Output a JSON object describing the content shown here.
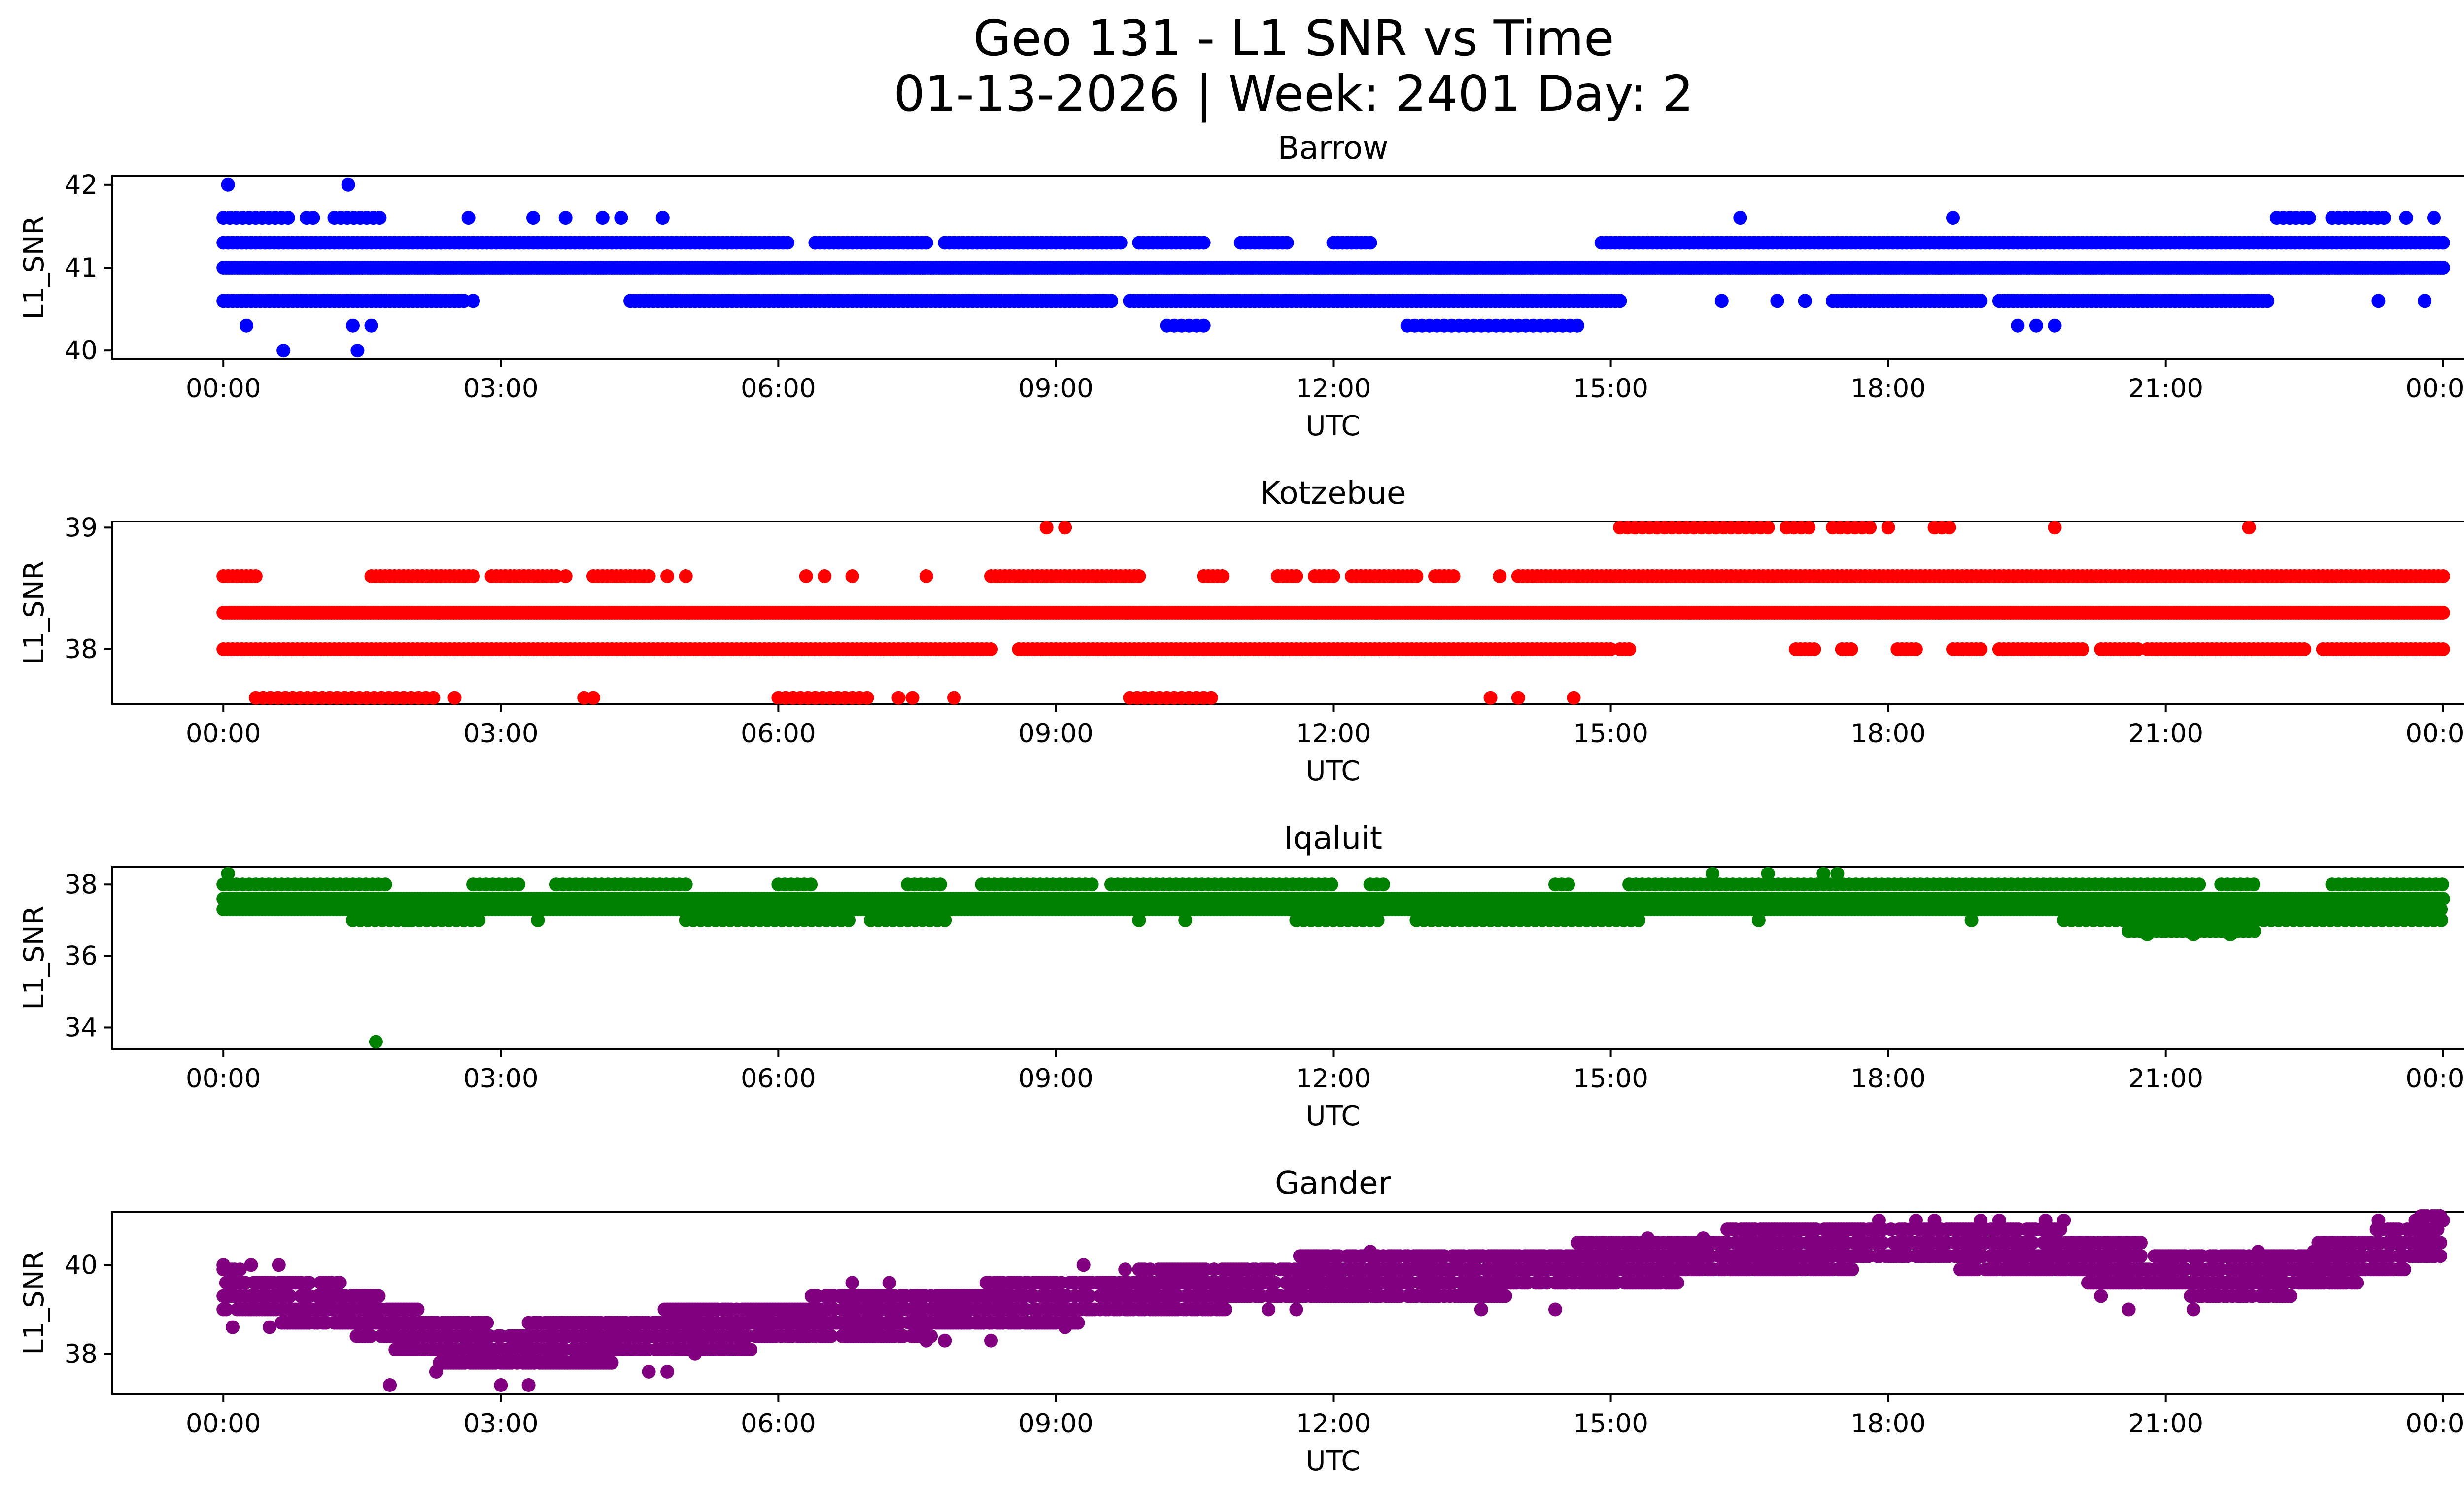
{
  "chart_data": {
    "type": "scatter",
    "title_line1": "Geo 131 - L1 SNR vs Time",
    "title_line2": "01-13-2026 | Week: 2401 Day: 2",
    "xlabel": "UTC",
    "ylabel": "L1_SNR",
    "x_unit": "hours UTC",
    "xlim": [
      -1.2,
      25.2
    ],
    "xticks": [
      0,
      3,
      6,
      9,
      12,
      15,
      18,
      21,
      24
    ],
    "xtick_labels": [
      "00:00",
      "03:00",
      "06:00",
      "09:00",
      "12:00",
      "15:00",
      "18:00",
      "21:00",
      "00:00"
    ],
    "panels": [
      {
        "title": "Barrow",
        "color": "#0000ff",
        "ylim": [
          39.9,
          42.1
        ],
        "yticks": [
          40,
          41,
          42
        ],
        "ytick_labels": [
          "40",
          "41",
          "42"
        ],
        "bands": [
          {
            "y": 41.0,
            "segments": [
              [
                0,
                24
              ]
            ],
            "step": 0.03
          },
          {
            "y": 41.3,
            "segments": [
              [
                0,
                6.1
              ],
              [
                6.4,
                7.6
              ],
              [
                7.8,
                9.7
              ],
              [
                9.9,
                10.6
              ],
              [
                11.0,
                11.5
              ],
              [
                12.0,
                12.4
              ],
              [
                14.9,
                24
              ]
            ],
            "step": 0.05
          },
          {
            "y": 40.6,
            "segments": [
              [
                0,
                2.6
              ],
              [
                4.4,
                9.6
              ],
              [
                9.8,
                15.1
              ],
              [
                17.4,
                19.0
              ],
              [
                19.2,
                22.1
              ]
            ],
            "step": 0.05
          },
          {
            "y": 41.6,
            "segments": [
              [
                0,
                0.7
              ],
              [
                0.9,
                1.0
              ],
              [
                1.2,
                1.7
              ],
              [
                22.2,
                22.6
              ],
              [
                22.8,
                23.4
              ]
            ],
            "step": 0.07
          },
          {
            "y": 40.3,
            "segments": [
              [
                10.2,
                10.6
              ],
              [
                12.8,
                14.7
              ]
            ],
            "step": 0.08
          }
        ],
        "points": [
          {
            "x": 0.05,
            "y": 42.0
          },
          {
            "x": 1.35,
            "y": 42.0
          },
          {
            "x": 0.25,
            "y": 40.3
          },
          {
            "x": 1.4,
            "y": 40.3
          },
          {
            "x": 1.6,
            "y": 40.3
          },
          {
            "x": 0.65,
            "y": 40.0
          },
          {
            "x": 1.45,
            "y": 40.0
          },
          {
            "x": 2.65,
            "y": 41.6
          },
          {
            "x": 3.35,
            "y": 41.6
          },
          {
            "x": 3.7,
            "y": 41.6
          },
          {
            "x": 4.1,
            "y": 41.6
          },
          {
            "x": 4.3,
            "y": 41.6
          },
          {
            "x": 4.75,
            "y": 41.6
          },
          {
            "x": 16.4,
            "y": 41.6
          },
          {
            "x": 18.7,
            "y": 41.6
          },
          {
            "x": 23.6,
            "y": 41.6
          },
          {
            "x": 23.9,
            "y": 41.6
          },
          {
            "x": 2.7,
            "y": 40.6
          },
          {
            "x": 16.2,
            "y": 40.6
          },
          {
            "x": 16.8,
            "y": 40.6
          },
          {
            "x": 17.1,
            "y": 40.6
          },
          {
            "x": 23.3,
            "y": 40.6
          },
          {
            "x": 23.8,
            "y": 40.6
          },
          {
            "x": 19.4,
            "y": 40.3
          },
          {
            "x": 19.6,
            "y": 40.3
          },
          {
            "x": 19.8,
            "y": 40.3
          }
        ]
      },
      {
        "title": "Kotzebue",
        "color": "#ff0000",
        "ylim": [
          37.55,
          39.05
        ],
        "yticks": [
          38,
          39
        ],
        "ytick_labels": [
          "38",
          "39"
        ],
        "bands": [
          {
            "y": 38.3,
            "segments": [
              [
                0,
                24
              ]
            ],
            "step": 0.03
          },
          {
            "y": 38.0,
            "segments": [
              [
                0,
                8.3
              ],
              [
                8.6,
                15.0
              ],
              [
                15.1,
                15.2
              ],
              [
                17.0,
                17.2
              ],
              [
                17.5,
                17.6
              ],
              [
                18.1,
                18.3
              ],
              [
                18.7,
                19.0
              ],
              [
                19.2,
                20.1
              ],
              [
                20.3,
                20.7
              ],
              [
                20.8,
                22.5
              ],
              [
                22.7,
                24
              ]
            ],
            "step": 0.05
          },
          {
            "y": 38.6,
            "segments": [
              [
                0,
                0.35
              ],
              [
                1.6,
                2.7
              ],
              [
                2.9,
                3.6
              ],
              [
                4.0,
                4.6
              ],
              [
                8.3,
                9.9
              ],
              [
                10.6,
                10.8
              ],
              [
                11.4,
                11.6
              ],
              [
                11.8,
                12.0
              ],
              [
                12.2,
                12.9
              ],
              [
                13.1,
                13.3
              ],
              [
                14.0,
                24
              ]
            ],
            "step": 0.05
          },
          {
            "y": 37.6,
            "segments": [
              [
                0.35,
                2.3
              ],
              [
                6.0,
                7.0
              ],
              [
                9.8,
                10.7
              ]
            ],
            "step": 0.08
          },
          {
            "y": 39.0,
            "segments": [
              [
                15.1,
                16.7
              ],
              [
                16.9,
                17.2
              ],
              [
                17.4,
                17.8
              ],
              [
                18.5,
                18.7
              ]
            ],
            "step": 0.08
          }
        ],
        "points": [
          {
            "x": 2.5,
            "y": 37.6
          },
          {
            "x": 3.9,
            "y": 37.6
          },
          {
            "x": 4.0,
            "y": 37.6
          },
          {
            "x": 7.3,
            "y": 37.6
          },
          {
            "x": 7.45,
            "y": 37.6
          },
          {
            "x": 7.9,
            "y": 37.6
          },
          {
            "x": 13.7,
            "y": 37.6
          },
          {
            "x": 14.0,
            "y": 37.6
          },
          {
            "x": 14.6,
            "y": 37.6
          },
          {
            "x": 8.9,
            "y": 39.0
          },
          {
            "x": 9.1,
            "y": 39.0
          },
          {
            "x": 19.8,
            "y": 39.0
          },
          {
            "x": 21.9,
            "y": 39.0
          },
          {
            "x": 18.0,
            "y": 39.0
          },
          {
            "x": 3.7,
            "y": 38.6
          },
          {
            "x": 4.8,
            "y": 38.6
          },
          {
            "x": 5.0,
            "y": 38.6
          },
          {
            "x": 6.3,
            "y": 38.6
          },
          {
            "x": 6.5,
            "y": 38.6
          },
          {
            "x": 6.8,
            "y": 38.6
          },
          {
            "x": 7.6,
            "y": 38.6
          },
          {
            "x": 13.8,
            "y": 38.6
          }
        ]
      },
      {
        "title": "Iqaluit",
        "color": "#008000",
        "ylim": [
          33.4,
          38.5
        ],
        "yticks": [
          34,
          36,
          38
        ],
        "ytick_labels": [
          "34",
          "36",
          "38"
        ],
        "bands": [
          {
            "y": 37.6,
            "segments": [
              [
                0,
                24
              ]
            ],
            "step": 0.03
          },
          {
            "y": 37.3,
            "segments": [
              [
                0,
                24
              ]
            ],
            "step": 0.035
          },
          {
            "y": 38.0,
            "segments": [
              [
                0,
                1.8
              ],
              [
                2.7,
                3.2
              ],
              [
                3.6,
                5.0
              ],
              [
                6.0,
                6.4
              ],
              [
                7.4,
                7.8
              ],
              [
                8.2,
                9.4
              ],
              [
                9.6,
                12.0
              ],
              [
                12.4,
                12.6
              ],
              [
                14.4,
                14.6
              ],
              [
                15.2,
                21.4
              ],
              [
                21.6,
                22.0
              ],
              [
                22.8,
                24
              ]
            ],
            "step": 0.07
          },
          {
            "y": 37.0,
            "segments": [
              [
                1.4,
                2.8
              ],
              [
                5.0,
                6.8
              ],
              [
                7.0,
                7.8
              ],
              [
                11.6,
                12.5
              ],
              [
                12.9,
                15.3
              ],
              [
                19.9,
                24
              ]
            ],
            "step": 0.08
          },
          {
            "y": 36.7,
            "segments": [
              [
                20.6,
                21.0
              ],
              [
                21.0,
                22.0
              ]
            ],
            "step": 0.06
          }
        ],
        "points": [
          {
            "x": 0.05,
            "y": 38.3
          },
          {
            "x": 16.1,
            "y": 38.3
          },
          {
            "x": 16.7,
            "y": 38.3
          },
          {
            "x": 17.3,
            "y": 38.3
          },
          {
            "x": 17.45,
            "y": 38.3
          },
          {
            "x": 1.65,
            "y": 33.6
          },
          {
            "x": 2.0,
            "y": 37.0
          },
          {
            "x": 3.4,
            "y": 37.0
          },
          {
            "x": 9.9,
            "y": 37.0
          },
          {
            "x": 10.4,
            "y": 37.0
          },
          {
            "x": 16.6,
            "y": 37.0
          },
          {
            "x": 18.9,
            "y": 37.0
          },
          {
            "x": 20.8,
            "y": 36.6
          },
          {
            "x": 21.3,
            "y": 36.6
          },
          {
            "x": 21.7,
            "y": 36.6
          }
        ]
      },
      {
        "title": "Gander",
        "color": "#800080",
        "ylim": [
          37.1,
          41.2
        ],
        "yticks": [
          38,
          40
        ],
        "ytick_labels": [
          "38",
          "40"
        ],
        "trend": [
          [
            0,
            39.4
          ],
          [
            1.2,
            39.1
          ],
          [
            2.2,
            38.4
          ],
          [
            3.0,
            38.1
          ],
          [
            4.5,
            38.4
          ],
          [
            6.0,
            38.7
          ],
          [
            8.0,
            39.0
          ],
          [
            9.0,
            39.2
          ],
          [
            10.5,
            39.5
          ],
          [
            12.0,
            39.7
          ],
          [
            13.5,
            39.8
          ],
          [
            15.0,
            40.0
          ],
          [
            16.5,
            40.3
          ],
          [
            18.0,
            40.5
          ],
          [
            19.5,
            40.4
          ],
          [
            20.5,
            40.0
          ],
          [
            21.0,
            39.9
          ],
          [
            22.0,
            39.7
          ],
          [
            23.0,
            40.1
          ],
          [
            24.0,
            40.7
          ]
        ],
        "spread": 0.55,
        "grid_step": 0.3,
        "points": [
          {
            "x": 0.0,
            "y": 40.0
          },
          {
            "x": 0.3,
            "y": 40.0
          },
          {
            "x": 0.6,
            "y": 40.0
          },
          {
            "x": 0.1,
            "y": 38.6
          },
          {
            "x": 0.5,
            "y": 38.6
          },
          {
            "x": 1.8,
            "y": 37.3
          },
          {
            "x": 2.3,
            "y": 37.6
          },
          {
            "x": 3.0,
            "y": 37.3
          },
          {
            "x": 3.3,
            "y": 37.3
          },
          {
            "x": 4.6,
            "y": 37.6
          },
          {
            "x": 4.8,
            "y": 37.6
          },
          {
            "x": 5.1,
            "y": 38.0
          },
          {
            "x": 7.6,
            "y": 38.3
          },
          {
            "x": 7.8,
            "y": 38.3
          },
          {
            "x": 8.3,
            "y": 38.3
          },
          {
            "x": 9.1,
            "y": 38.6
          },
          {
            "x": 7.2,
            "y": 39.6
          },
          {
            "x": 6.8,
            "y": 39.6
          },
          {
            "x": 9.3,
            "y": 40.0
          },
          {
            "x": 11.3,
            "y": 39.0
          },
          {
            "x": 11.6,
            "y": 39.0
          },
          {
            "x": 12.4,
            "y": 40.3
          },
          {
            "x": 13.6,
            "y": 39.0
          },
          {
            "x": 14.4,
            "y": 39.0
          },
          {
            "x": 15.4,
            "y": 40.6
          },
          {
            "x": 16.0,
            "y": 40.6
          },
          {
            "x": 17.9,
            "y": 41.0
          },
          {
            "x": 18.3,
            "y": 41.0
          },
          {
            "x": 18.5,
            "y": 41.0
          },
          {
            "x": 19.0,
            "y": 41.0
          },
          {
            "x": 19.2,
            "y": 41.0
          },
          {
            "x": 19.7,
            "y": 41.0
          },
          {
            "x": 19.9,
            "y": 41.0
          },
          {
            "x": 20.3,
            "y": 39.3
          },
          {
            "x": 20.6,
            "y": 39.0
          },
          {
            "x": 21.3,
            "y": 39.0
          },
          {
            "x": 21.8,
            "y": 39.3
          },
          {
            "x": 22.0,
            "y": 40.3
          },
          {
            "x": 22.6,
            "y": 40.3
          },
          {
            "x": 23.3,
            "y": 41.0
          },
          {
            "x": 23.7,
            "y": 41.0
          },
          {
            "x": 24.0,
            "y": 41.0
          }
        ]
      }
    ]
  }
}
